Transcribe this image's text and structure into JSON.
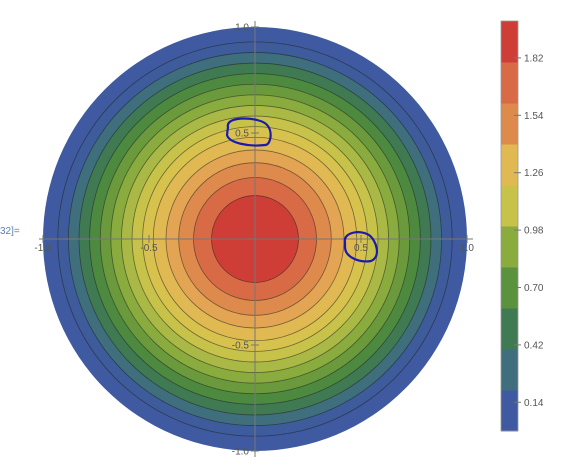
{
  "cell_label": "32]=",
  "chart_data": {
    "type": "contour",
    "x_ticks": [
      {
        "value": -1.0,
        "label": "-1.0"
      },
      {
        "value": -0.5,
        "label": "-0.5"
      },
      {
        "value": 0.5,
        "label": "0.5"
      },
      {
        "value": 1.0,
        "label": "1.0"
      }
    ],
    "y_ticks": [
      {
        "value": 1.0,
        "label": "1.0"
      },
      {
        "value": 0.5,
        "label": "0.5"
      },
      {
        "value": -0.5,
        "label": "-0.5"
      },
      {
        "value": -1.0,
        "label": "-1.0"
      }
    ],
    "xlim": [
      -1.0,
      1.0
    ],
    "ylim": [
      -1.0,
      1.0
    ],
    "domain": "unit disk",
    "contour_levels": [
      {
        "r": 1.0,
        "color": "#3f5aa0"
      },
      {
        "r": 0.93,
        "color": "#3e5c9c"
      },
      {
        "r": 0.88,
        "color": "#3f6f7c"
      },
      {
        "r": 0.83,
        "color": "#3f7a52"
      },
      {
        "r": 0.78,
        "color": "#4d8a40"
      },
      {
        "r": 0.73,
        "color": "#6a9a3c"
      },
      {
        "r": 0.68,
        "color": "#8aab3e"
      },
      {
        "r": 0.63,
        "color": "#aab945"
      },
      {
        "r": 0.58,
        "color": "#c6c24a"
      },
      {
        "r": 0.53,
        "color": "#d8c24e"
      },
      {
        "r": 0.48,
        "color": "#e0b953"
      },
      {
        "r": 0.42,
        "color": "#e3a553"
      },
      {
        "r": 0.36,
        "color": "#de8a4d"
      },
      {
        "r": 0.29,
        "color": "#d86a45"
      },
      {
        "r": 0.205,
        "color": "#cf3e36"
      }
    ],
    "colorbar": {
      "range": [
        0,
        2.0
      ],
      "ticks": [
        {
          "value": 1.82,
          "label": "1.82"
        },
        {
          "value": 1.54,
          "label": "1.54"
        },
        {
          "value": 1.26,
          "label": "1.26"
        },
        {
          "value": 0.98,
          "label": "0.98"
        },
        {
          "value": 0.7,
          "label": "0.70"
        },
        {
          "value": 0.42,
          "label": "0.42"
        },
        {
          "value": 0.14,
          "label": "0.14"
        }
      ],
      "bands": [
        "#3f5aa0",
        "#3f6f7c",
        "#3f7a52",
        "#5a923e",
        "#8aab3e",
        "#c6c24a",
        "#e0b953",
        "#de8a4d",
        "#d86a45",
        "#cf3e36"
      ]
    },
    "annotations": [
      {
        "type": "hand-drawn-circle",
        "around": "y tick 0.5",
        "color": "#1a1ab0"
      },
      {
        "type": "hand-drawn-circle",
        "around": "x tick 0.5",
        "color": "#1a1ab0"
      }
    ]
  }
}
